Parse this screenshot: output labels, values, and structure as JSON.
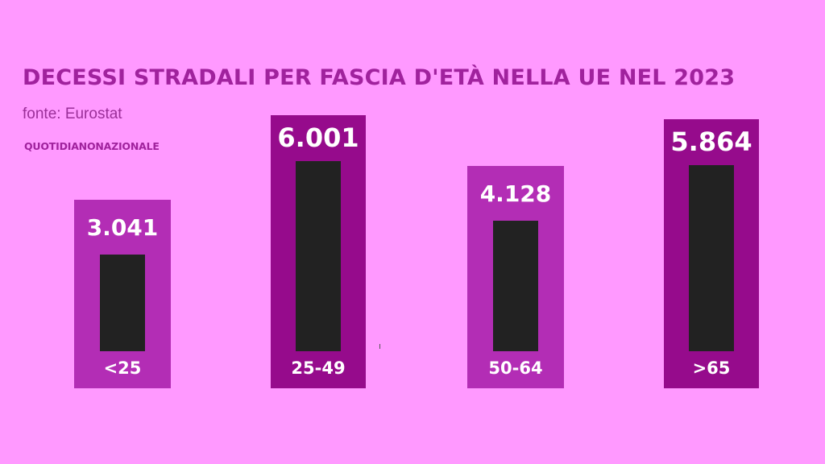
{
  "chart_data": {
    "type": "bar",
    "title": "DECESSI STRADALI PER FASCIA D'ETÀ NELLA UE NEL 2023",
    "source": "fonte: Eurostat",
    "brand": "QUOTIDIANONAZIONALE",
    "categories": [
      "<25",
      "25-49",
      "50-64",
      ">65"
    ],
    "values": [
      3041,
      6001,
      4128,
      5864
    ],
    "value_labels": [
      "3.041",
      "6.001",
      "4.128",
      "5.864"
    ],
    "xlabel": "",
    "ylabel": "",
    "ylim": [
      0,
      6500
    ],
    "grid": false,
    "legend": "none",
    "colors": {
      "background": "#ff99ff",
      "title": "#a0229d",
      "box_light": "#b32db5",
      "box_dark": "#960b8c",
      "bar": "#222222",
      "label": "#ffffff"
    }
  }
}
